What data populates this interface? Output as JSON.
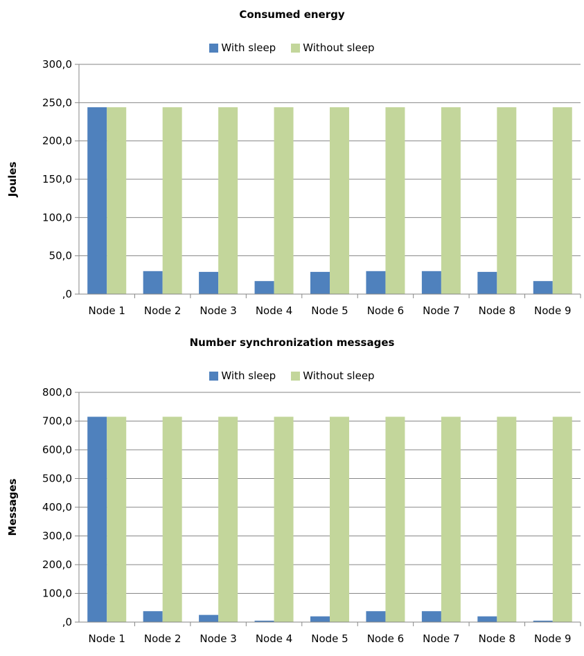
{
  "chart_data": [
    {
      "type": "bar",
      "title": "Consumed energy",
      "ylabel": "Joules",
      "xlabel": "",
      "ylim": [
        0,
        300
      ],
      "yticks": [
        ",0",
        "50,0",
        "100,0",
        "150,0",
        "200,0",
        "250,0",
        "300,0"
      ],
      "categories": [
        "Node 1",
        "Node 2",
        "Node 3",
        "Node 4",
        "Node 5",
        "Node 6",
        "Node 7",
        "Node 8",
        "Node 9"
      ],
      "series": [
        {
          "name": "With sleep",
          "color": "#4F81BD",
          "values": [
            244,
            30,
            29,
            17,
            29,
            30,
            30,
            29,
            17
          ]
        },
        {
          "name": "Without sleep",
          "color": "#C3D69B",
          "values": [
            244,
            244,
            244,
            244,
            244,
            244,
            244,
            244,
            244
          ]
        }
      ],
      "grid": true,
      "legend": "top"
    },
    {
      "type": "bar",
      "title": "Number synchronization messages",
      "ylabel": "Messages",
      "xlabel": "",
      "ylim": [
        0,
        800
      ],
      "yticks": [
        ",0",
        "100,0",
        "200,0",
        "300,0",
        "400,0",
        "500,0",
        "600,0",
        "700,0",
        "800,0"
      ],
      "categories": [
        "Node 1",
        "Node 2",
        "Node 3",
        "Node 4",
        "Node 5",
        "Node 6",
        "Node 7",
        "Node 8",
        "Node 9"
      ],
      "series": [
        {
          "name": "With sleep",
          "color": "#4F81BD",
          "values": [
            715,
            38,
            25,
            5,
            20,
            38,
            38,
            20,
            5
          ]
        },
        {
          "name": "Without sleep",
          "color": "#C3D69B",
          "values": [
            715,
            715,
            715,
            715,
            715,
            715,
            715,
            715,
            715
          ]
        }
      ],
      "grid": true,
      "legend": "top"
    }
  ]
}
